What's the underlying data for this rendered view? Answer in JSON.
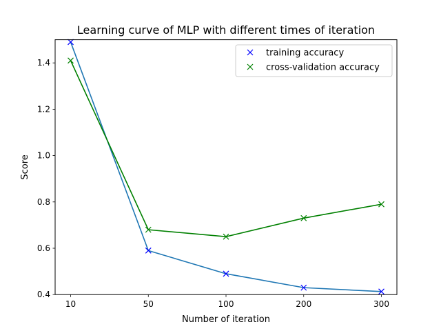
{
  "chart_data": {
    "type": "line",
    "title": "Learning curve of MLP with different times of iteration",
    "xlabel": "Number of iteration",
    "ylabel": "Score",
    "categories": [
      "10",
      "50",
      "100",
      "200",
      "300"
    ],
    "ylim": [
      0.4,
      1.5
    ],
    "yticks": [
      "0.4",
      "0.6",
      "0.8",
      "1.0",
      "1.2",
      "1.4"
    ],
    "grid": false,
    "legend_position": "top-right",
    "series": [
      {
        "name": "training accuracy",
        "values": [
          1.49,
          0.59,
          0.49,
          0.43,
          0.413
        ],
        "line_color": "#1f77b4",
        "marker_color": "#0000ff",
        "marker": "x"
      },
      {
        "name": "cross-validation accuracy",
        "values": [
          1.41,
          0.68,
          0.65,
          0.73,
          0.79
        ],
        "line_color": "#008000",
        "marker_color": "#008000",
        "marker": "x"
      }
    ]
  }
}
